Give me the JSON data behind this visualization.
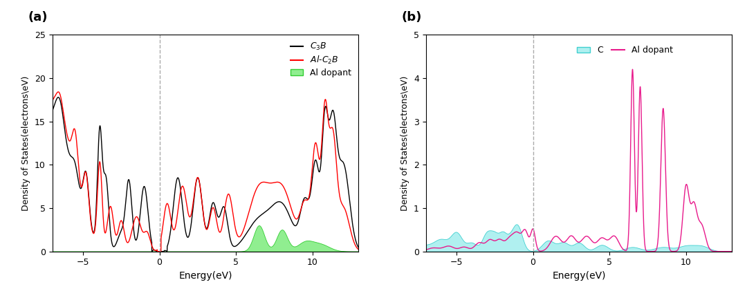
{
  "panel_a": {
    "xlabel": "Energy(eV)",
    "ylabel": "Density of States(electrons\\eV)",
    "xlim": [
      -7,
      13
    ],
    "ylim": [
      0,
      25
    ],
    "yticks": [
      0,
      5,
      10,
      15,
      20,
      25
    ],
    "xticks": [
      -5,
      0,
      5,
      10
    ],
    "vline_x": 0,
    "title": "(a)",
    "colors": {
      "c3b": "#000000",
      "alc2b": "#ff0000",
      "al_dopant_fill": "#90ee90",
      "al_dopant_edge": "#32cd32"
    }
  },
  "panel_b": {
    "xlabel": "Energy(eV)",
    "ylabel": "Density of States(electrons\\eV)",
    "xlim": [
      -7,
      13
    ],
    "ylim": [
      0,
      5
    ],
    "yticks": [
      0,
      1,
      2,
      3,
      4,
      5
    ],
    "xticks": [
      -5,
      0,
      5,
      10
    ],
    "vline_x": 0,
    "title": "(b)",
    "colors": {
      "c_fill": "#b0f0f0",
      "c_edge": "#40d0d0",
      "al_dopant": "#e8198b"
    }
  },
  "fig_bgcolor": "#ffffff"
}
